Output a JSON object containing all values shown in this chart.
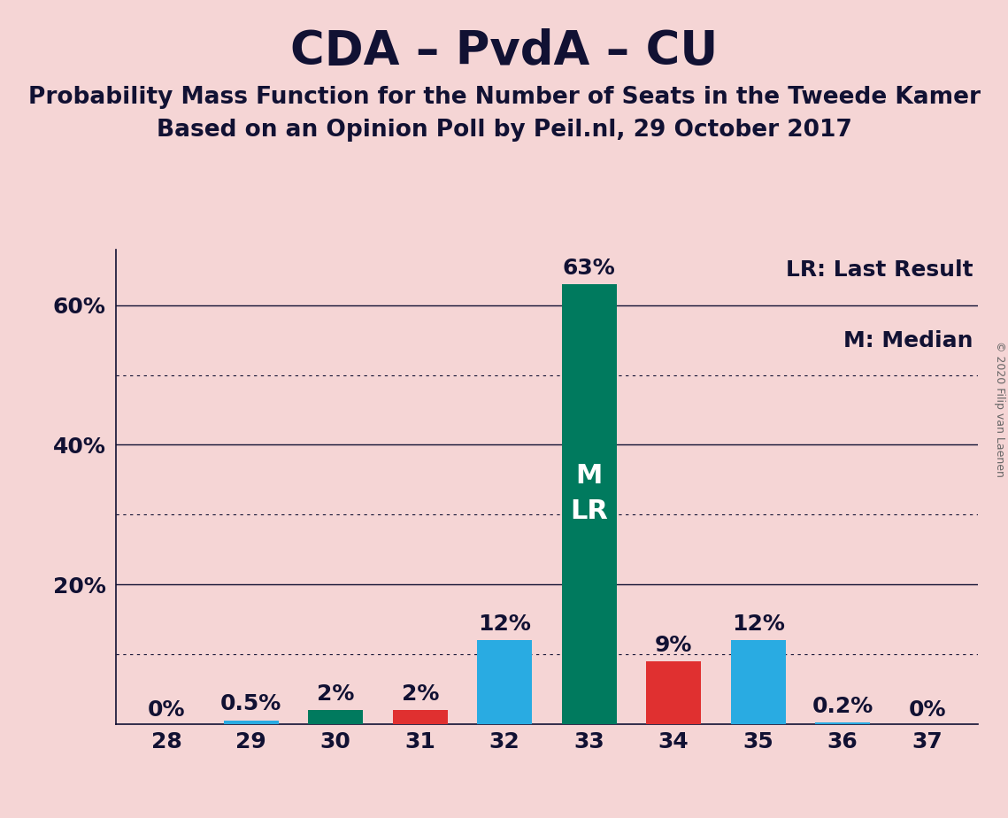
{
  "title": "CDA – PvdA – CU",
  "subtitle1": "Probability Mass Function for the Number of Seats in the Tweede Kamer",
  "subtitle2": "Based on an Opinion Poll by Peil.nl, 29 October 2017",
  "watermark": "© 2020 Filip van Laenen",
  "seats": [
    28,
    29,
    30,
    31,
    32,
    33,
    34,
    35,
    36,
    37
  ],
  "values": [
    0.0,
    0.5,
    2.0,
    2.0,
    12.0,
    63.0,
    9.0,
    12.0,
    0.2,
    0.0
  ],
  "labels": [
    "0%",
    "0.5%",
    "2%",
    "2%",
    "12%",
    "63%",
    "9%",
    "12%",
    "0.2%",
    "0%"
  ],
  "colors": [
    "#29abe2",
    "#29abe2",
    "#007a5e",
    "#e03030",
    "#29abe2",
    "#007a5e",
    "#e03030",
    "#29abe2",
    "#29abe2",
    "#29abe2"
  ],
  "median_seat": 33,
  "last_result_seat": 33,
  "background_color": "#f5d5d5",
  "bar_width": 0.65,
  "ylim": [
    0,
    68
  ],
  "solid_yticks": [
    20,
    40,
    60
  ],
  "dotted_yticks": [
    10,
    30,
    50
  ],
  "legend_lr": "LR: Last Result",
  "legend_m": "M: Median",
  "tick_fontsize": 18,
  "title_fontsize": 38,
  "subtitle_fontsize": 19,
  "bar_label_fontsize": 18,
  "legend_fontsize": 18,
  "inside_label_fontsize": 22,
  "watermark_fontsize": 9,
  "text_color": "#111133"
}
